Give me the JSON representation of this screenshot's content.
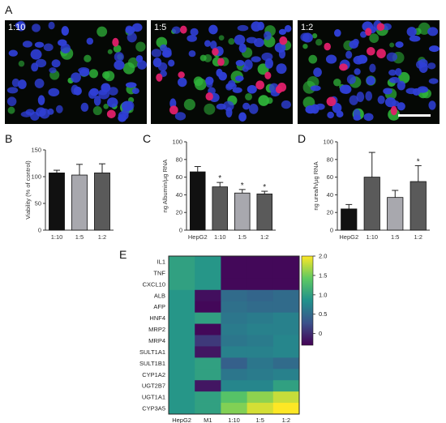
{
  "panel_labels": [
    "A",
    "B",
    "C",
    "D",
    "E"
  ],
  "micrographs": [
    {
      "label": "1:10",
      "red_cells": 2
    },
    {
      "label": "1:5",
      "red_cells": 12
    },
    {
      "label": "1:2",
      "red_cells": 8
    }
  ],
  "colors": {
    "nuclei": "#2f3fd6",
    "marker_green": "#2fb43a",
    "marker_red": "#e0206a",
    "bar_black": "#111111",
    "bar_dark_gray": "#5a5a5a",
    "bar_light_gray": "#a8a8ae"
  },
  "chart_data": [
    {
      "id": "B",
      "type": "bar",
      "categories": [
        "1:10",
        "1:5",
        "1:2"
      ],
      "values": [
        107,
        103,
        107
      ],
      "errors": [
        5,
        20,
        17
      ],
      "bar_colors": [
        "#111111",
        "#a8a8ae",
        "#5a5a5a"
      ],
      "significance": [
        "",
        "",
        ""
      ],
      "ylabel": "Viability (% of control)",
      "ylim": [
        0,
        150
      ],
      "yticks": [
        0,
        50,
        100,
        150
      ]
    },
    {
      "id": "C",
      "type": "bar",
      "categories": [
        "HepG2",
        "1:10",
        "1:5",
        "1:2"
      ],
      "values": [
        66,
        49,
        42,
        41
      ],
      "errors": [
        6,
        5,
        4,
        3
      ],
      "bar_colors": [
        "#111111",
        "#5a5a5a",
        "#a8a8ae",
        "#5a5a5a"
      ],
      "significance": [
        "",
        "*",
        "*",
        "*"
      ],
      "ylabel": "ng Albumin/µg RNA",
      "ylim": [
        0,
        100
      ],
      "yticks": [
        0,
        20,
        40,
        60,
        80,
        100
      ]
    },
    {
      "id": "D",
      "type": "bar",
      "categories": [
        "HepG2",
        "1:10",
        "1:5",
        "1:2"
      ],
      "values": [
        24,
        60,
        37,
        55
      ],
      "errors": [
        5,
        28,
        8,
        18
      ],
      "bar_colors": [
        "#111111",
        "#5a5a5a",
        "#a8a8ae",
        "#5a5a5a"
      ],
      "significance": [
        "",
        "",
        "",
        "*"
      ],
      "ylabel": "ng urea/h/µg RNA",
      "ylim": [
        0,
        100
      ],
      "yticks": [
        0,
        20,
        40,
        60,
        80,
        100
      ]
    },
    {
      "id": "E",
      "type": "heatmap",
      "columns": [
        "HepG2",
        "M1",
        "1:10",
        "1:5",
        "1:2"
      ],
      "rows": [
        "IL1",
        "TNF",
        "CXCL10",
        "ALB",
        "AFP",
        "HNF4",
        "MRP2",
        "MRP4",
        "SULT1A1",
        "SULT1B1",
        "CYP1A2",
        "UGT2B7",
        "UGT1A1",
        "CYP3A5"
      ],
      "values": [
        [
          1.0,
          0.9,
          -0.25,
          -0.25,
          -0.25
        ],
        [
          1.0,
          0.9,
          -0.25,
          -0.25,
          -0.25
        ],
        [
          1.0,
          0.9,
          -0.25,
          -0.25,
          -0.25
        ],
        [
          0.9,
          -0.2,
          0.5,
          0.45,
          0.5
        ],
        [
          0.9,
          -0.25,
          0.55,
          0.5,
          0.5
        ],
        [
          0.9,
          1.0,
          0.6,
          0.65,
          0.7
        ],
        [
          0.9,
          -0.25,
          0.65,
          0.7,
          0.7
        ],
        [
          0.9,
          0.1,
          0.6,
          0.65,
          0.75
        ],
        [
          0.9,
          -0.15,
          0.7,
          0.7,
          0.75
        ],
        [
          0.9,
          1.0,
          0.4,
          0.6,
          0.5
        ],
        [
          0.9,
          1.0,
          0.6,
          0.65,
          0.7
        ],
        [
          0.9,
          -0.15,
          0.75,
          0.75,
          1.0
        ],
        [
          0.9,
          1.0,
          1.35,
          1.6,
          1.8
        ],
        [
          0.9,
          1.0,
          1.55,
          1.85,
          2.0
        ]
      ],
      "colorbar_ticks": [
        2.0,
        1.5,
        1.0,
        0.5,
        0
      ],
      "color_range": [
        -0.3,
        2.0
      ]
    }
  ]
}
